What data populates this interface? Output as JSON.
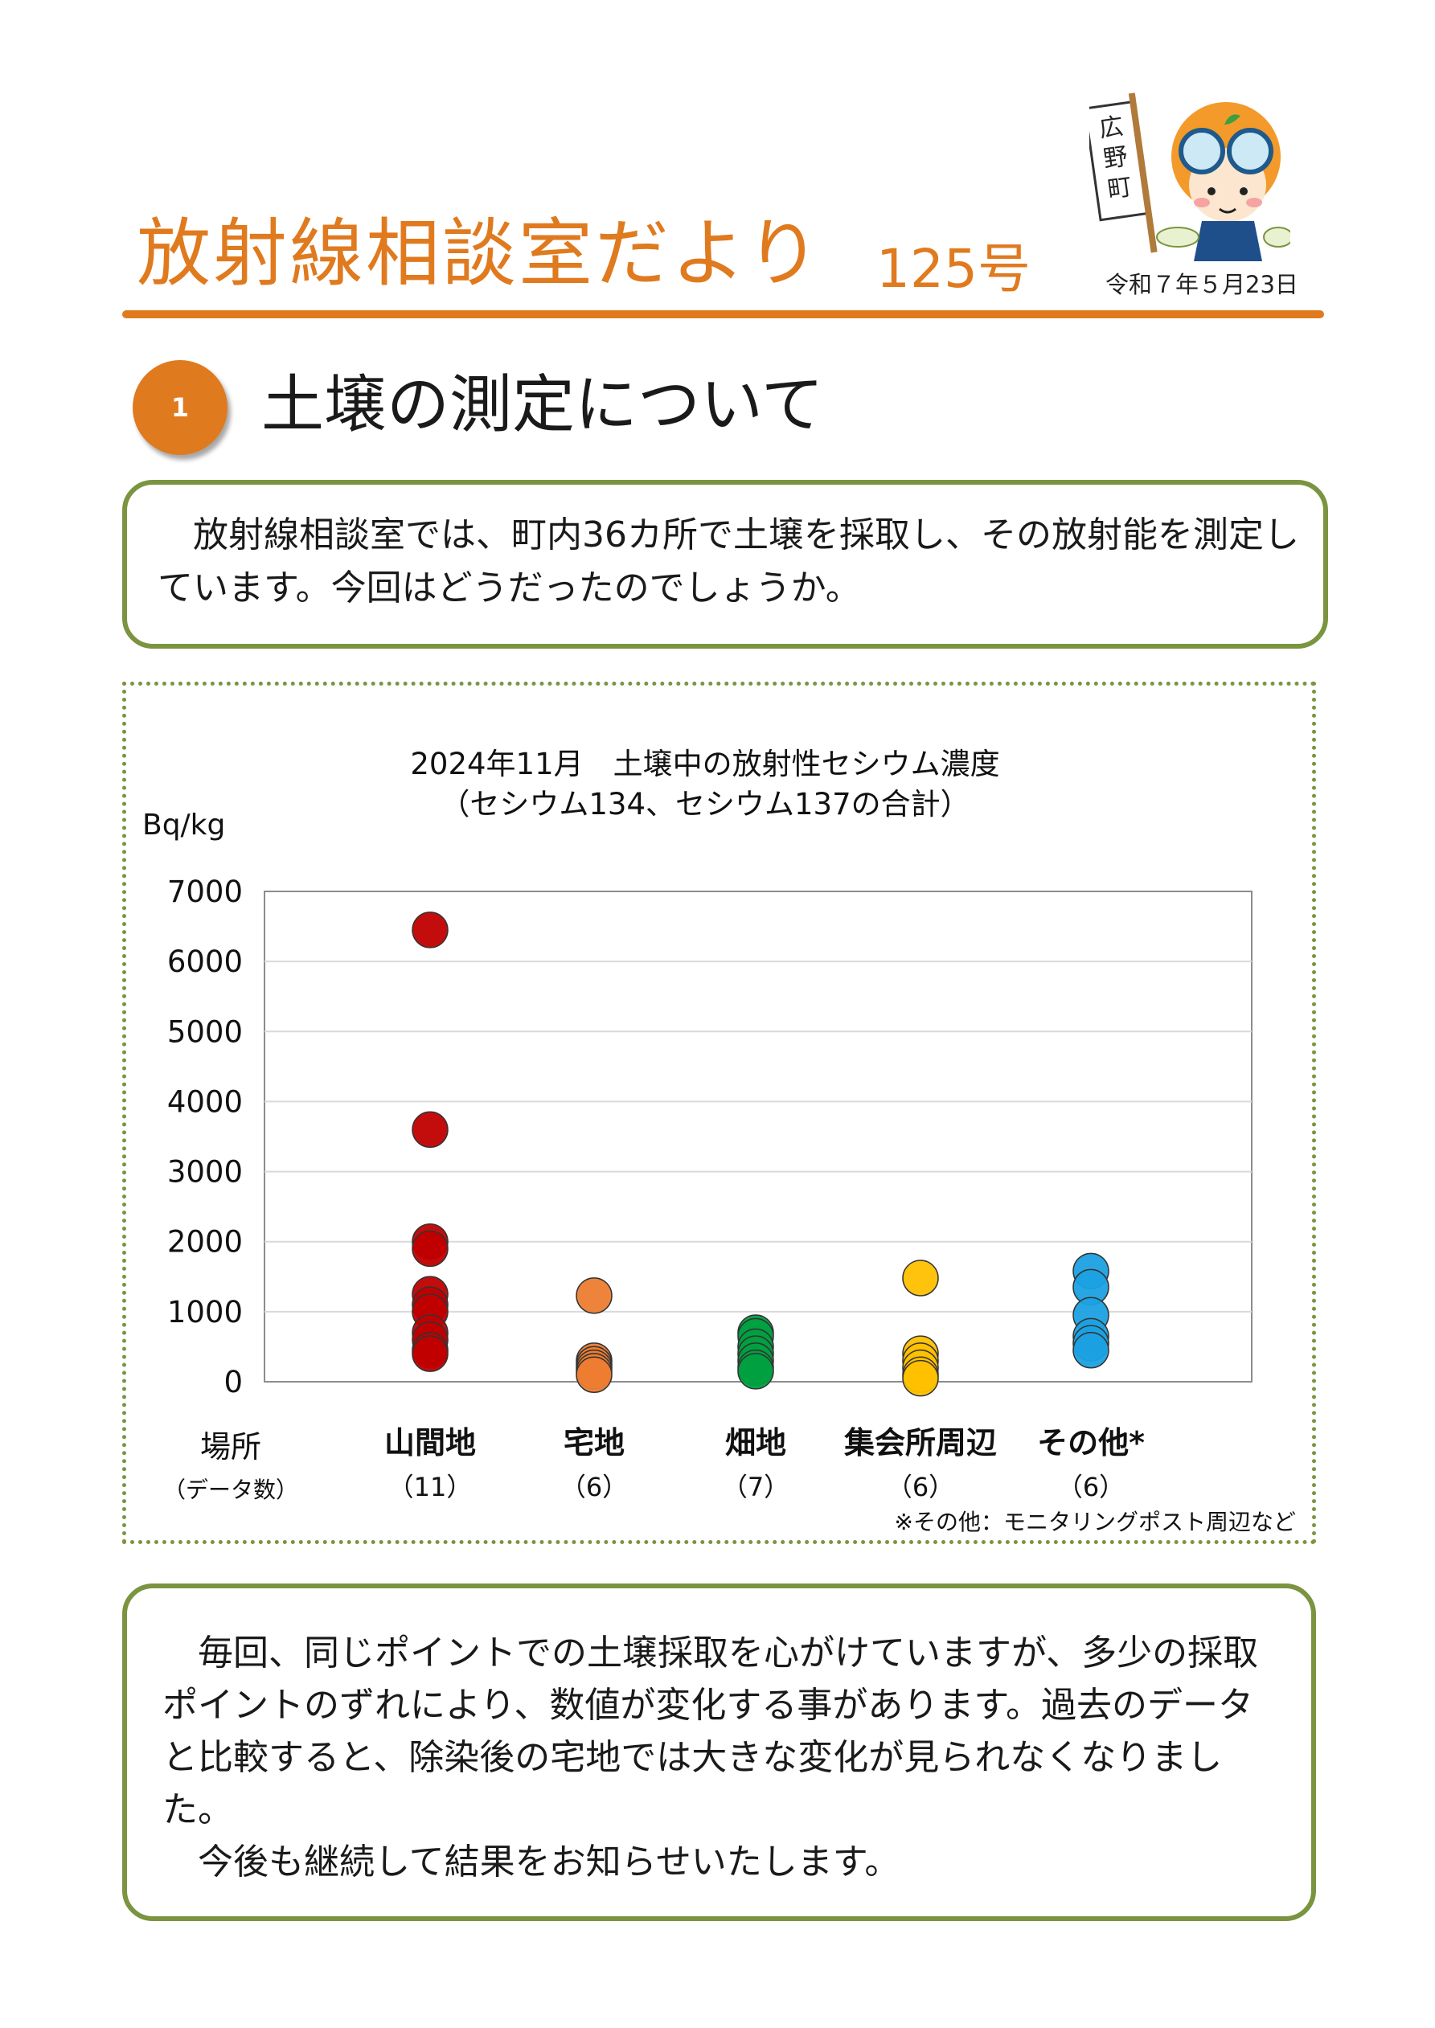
{
  "header": {
    "title": "放射線相談室だより",
    "issue": "125号",
    "date": "令和７年５月23日",
    "mascot_sign": "広野町"
  },
  "section": {
    "number": "1",
    "title": "土壌の測定について"
  },
  "intro": "放射線相談室では、町内36カ所で土壌を採取し、その放射能を測定しています。今回はどうだったのでしょうか。",
  "chart_data": {
    "type": "scatter",
    "title": "2024年11月　土壌中の放射性セシウム濃度",
    "subtitle": "（セシウム134、セシウム137の合計）",
    "unit_label": "Bq/kg",
    "ylim": [
      0,
      7000
    ],
    "yticks": [
      "0",
      "1000",
      "2000",
      "3000",
      "4000",
      "5000",
      "6000",
      "7000"
    ],
    "x_axis_label": "場所",
    "count_label": "（データ数）",
    "grid": true,
    "series": [
      {
        "name": "山間地",
        "count_label": "（11）",
        "color": "#c00000",
        "values": [
          6450,
          3600,
          2000,
          1900,
          1250,
          1100,
          1000,
          700,
          600,
          450,
          400
        ]
      },
      {
        "name": "宅地",
        "count_label": "（6）",
        "color": "#ed7d31",
        "values": [
          1230,
          300,
          250,
          200,
          150,
          100
        ]
      },
      {
        "name": "畑地",
        "count_label": "（7）",
        "color": "#00a040",
        "values": [
          700,
          650,
          500,
          400,
          300,
          200,
          150
        ]
      },
      {
        "name": "集会所周辺",
        "count_label": "（6）",
        "color": "#ffc000",
        "values": [
          1480,
          400,
          300,
          200,
          100,
          50
        ]
      },
      {
        "name": "その他*",
        "count_label": "（6）",
        "color": "#1ba1e2",
        "values": [
          1580,
          1350,
          950,
          650,
          550,
          450
        ]
      }
    ],
    "footnote": "※その他：モニタリングポスト周辺など"
  },
  "outro": {
    "paragraph1": "毎回、同じポイントでの土壌採取を心がけていますが、多少の採取ポイントのずれにより、数値が変化する事があります。過去のデータと比較すると、除染後の宅地では大きな変化が見られなくなりました。",
    "paragraph2": "今後も継続して結果をお知らせいたします。"
  }
}
